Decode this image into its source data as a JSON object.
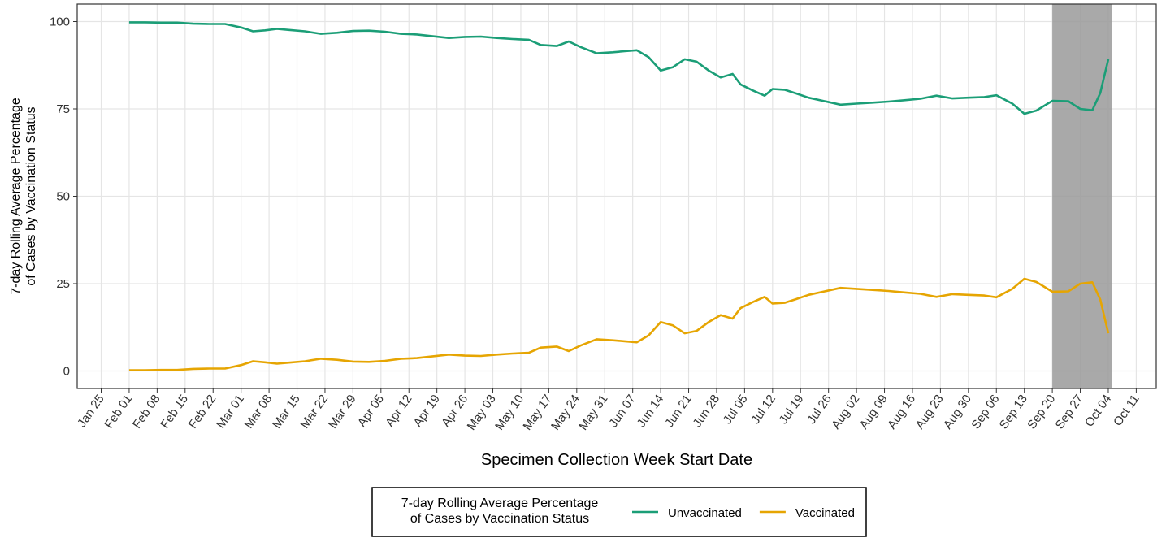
{
  "chart_data": {
    "type": "line",
    "y_label": [
      "7-day Rolling Average Percentage",
      "of Cases by Vaccination Status"
    ],
    "x_label": "Specimen Collection Week Start Date",
    "legend_title": [
      "7-day Rolling Average Percentage",
      "of Cases by Vaccination Status"
    ],
    "legend_position": "bottom",
    "grid": true,
    "shaded": [
      "Sep 20",
      "Oct 05"
    ],
    "xlim": [
      "Jan 19",
      "Oct 16"
    ],
    "xticks": [
      "Jan 25",
      "Feb 01",
      "Feb 08",
      "Feb 15",
      "Feb 22",
      "Mar 01",
      "Mar 08",
      "Mar 15",
      "Mar 22",
      "Mar 29",
      "Apr 05",
      "Apr 12",
      "Apr 19",
      "Apr 26",
      "May 03",
      "May 10",
      "May 17",
      "May 24",
      "May 31",
      "Jun 07",
      "Jun 14",
      "Jun 21",
      "Jun 28",
      "Jul 05",
      "Jul 12",
      "Jul 19",
      "Jul 26",
      "Aug 02",
      "Aug 09",
      "Aug 16",
      "Aug 23",
      "Aug 30",
      "Sep 06",
      "Sep 13",
      "Sep 20",
      "Sep 27",
      "Oct 04",
      "Oct 11"
    ],
    "ylim": [
      -5,
      105
    ],
    "yticks": [
      0,
      25,
      50,
      75,
      100
    ],
    "x": [
      "Feb 01",
      "Feb 05",
      "Feb 09",
      "Feb 13",
      "Feb 17",
      "Feb 21",
      "Feb 25",
      "Mar 01",
      "Mar 04",
      "Mar 07",
      "Mar 10",
      "Mar 13",
      "Mar 17",
      "Mar 21",
      "Mar 25",
      "Mar 29",
      "Apr 02",
      "Apr 06",
      "Apr 10",
      "Apr 14",
      "Apr 18",
      "Apr 22",
      "Apr 26",
      "Apr 30",
      "May 04",
      "May 08",
      "May 12",
      "May 15",
      "May 19",
      "May 22",
      "May 25",
      "May 29",
      "Jun 02",
      "Jun 05",
      "Jun 08",
      "Jun 11",
      "Jun 14",
      "Jun 17",
      "Jun 20",
      "Jun 23",
      "Jun 26",
      "Jun 29",
      "Jul 02",
      "Jul 04",
      "Jul 07",
      "Jul 10",
      "Jul 12",
      "Jul 15",
      "Jul 18",
      "Jul 21",
      "Jul 25",
      "Jul 29",
      "Aug 02",
      "Aug 06",
      "Aug 10",
      "Aug 14",
      "Aug 18",
      "Aug 22",
      "Aug 26",
      "Aug 30",
      "Sep 03",
      "Sep 06",
      "Sep 10",
      "Sep 13",
      "Sep 16",
      "Sep 20",
      "Sep 24",
      "Sep 27",
      "Sep 30",
      "Oct 02",
      "Oct 04"
    ],
    "series": [
      {
        "name": "Unvaccinated",
        "color": "#1b9e77",
        "values": [
          99.8,
          99.8,
          99.7,
          99.7,
          99.4,
          99.3,
          99.3,
          98.3,
          97.2,
          97.5,
          97.9,
          97.6,
          97.2,
          96.5,
          96.8,
          97.3,
          97.4,
          97.1,
          96.5,
          96.3,
          95.8,
          95.3,
          95.6,
          95.7,
          95.3,
          95.0,
          94.8,
          93.3,
          93.0,
          94.3,
          92.7,
          90.9,
          91.2,
          91.5,
          91.8,
          89.8,
          86.0,
          86.9,
          89.2,
          88.5,
          86.0,
          84.0,
          85.0,
          82.0,
          80.3,
          78.8,
          80.7,
          80.5,
          79.4,
          78.2,
          77.2,
          76.2,
          76.5,
          76.8,
          77.1,
          77.5,
          77.9,
          78.8,
          78.0,
          78.2,
          78.4,
          78.9,
          76.5,
          73.6,
          74.5,
          77.3,
          77.2,
          75.0,
          74.6,
          79.5,
          89.2
        ]
      },
      {
        "name": "Vaccinated",
        "color": "#e6a502",
        "values": [
          0.2,
          0.2,
          0.3,
          0.3,
          0.6,
          0.7,
          0.7,
          1.7,
          2.8,
          2.5,
          2.1,
          2.4,
          2.8,
          3.5,
          3.2,
          2.7,
          2.6,
          2.9,
          3.5,
          3.7,
          4.2,
          4.7,
          4.4,
          4.3,
          4.7,
          5.0,
          5.2,
          6.7,
          7.0,
          5.7,
          7.3,
          9.1,
          8.8,
          8.5,
          8.2,
          10.2,
          14.0,
          13.1,
          10.8,
          11.5,
          14.0,
          16.0,
          15.0,
          18.0,
          19.7,
          21.2,
          19.3,
          19.5,
          20.6,
          21.8,
          22.8,
          23.8,
          23.5,
          23.2,
          22.9,
          22.5,
          22.1,
          21.2,
          22.0,
          21.8,
          21.6,
          21.1,
          23.5,
          26.4,
          25.5,
          22.7,
          22.8,
          25.0,
          25.4,
          20.5,
          10.8
        ]
      }
    ]
  }
}
